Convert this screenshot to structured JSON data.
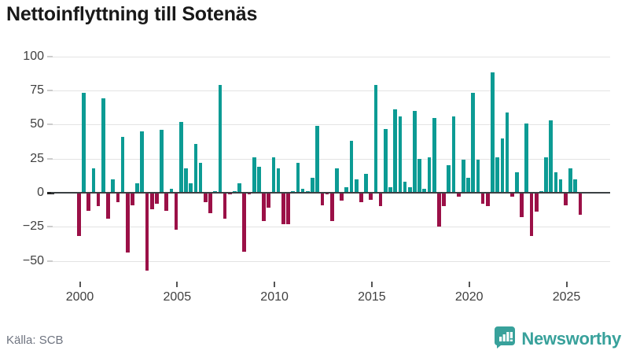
{
  "title": "Nettoinflyttning till Sotenäs",
  "source": "Källa: SCB",
  "branding": {
    "name": "Newsworthy",
    "color": "#38a19b"
  },
  "colors": {
    "positive_bar": "#0c9b94",
    "negative_bar": "#9b1047",
    "zero_line": "#3b4043",
    "gridline": "#e3e3e3",
    "axis_text": "#3f3f3f",
    "source_text": "#6f7480",
    "title_text": "#191919"
  },
  "chart_data": {
    "type": "bar",
    "title": "Nettoinflyttning till Sotenäs",
    "frequency": "quarterly",
    "x_start": "2000 Q1",
    "x_end": "2025 Q4",
    "xlabel": "",
    "ylabel": "",
    "grid": true,
    "legend": false,
    "ylim": [
      -62,
      107
    ],
    "y_ticks": [
      100,
      75,
      50,
      25,
      0,
      -25,
      -50
    ],
    "x_ticks": [
      2000,
      2005,
      2010,
      2015,
      2020,
      2025
    ],
    "values": [
      -32,
      73,
      -13,
      18,
      -10,
      69,
      -19,
      10,
      -7,
      41,
      -44,
      -9,
      7,
      45,
      -57,
      -12,
      -8,
      46,
      -13,
      3,
      -27,
      52,
      18,
      7,
      36,
      22,
      -7,
      -15,
      1,
      79,
      -19,
      -1,
      1,
      7,
      -43,
      -1,
      26,
      19,
      -21,
      -11,
      26,
      18,
      -23,
      -23,
      1,
      22,
      3,
      1,
      11,
      49,
      -9,
      -1,
      -21,
      18,
      -6,
      4,
      38,
      10,
      -7,
      14,
      -5,
      79,
      -10,
      47,
      4,
      61,
      56,
      8,
      4,
      60,
      25,
      3,
      26,
      55,
      -25,
      -10,
      20,
      56,
      -3,
      24,
      11,
      73,
      24,
      -8,
      -10,
      88,
      26,
      40,
      59,
      -3,
      15,
      -18,
      51,
      -32,
      -14,
      1,
      26,
      53,
      15,
      10,
      -9,
      18,
      10,
      -16
    ]
  }
}
